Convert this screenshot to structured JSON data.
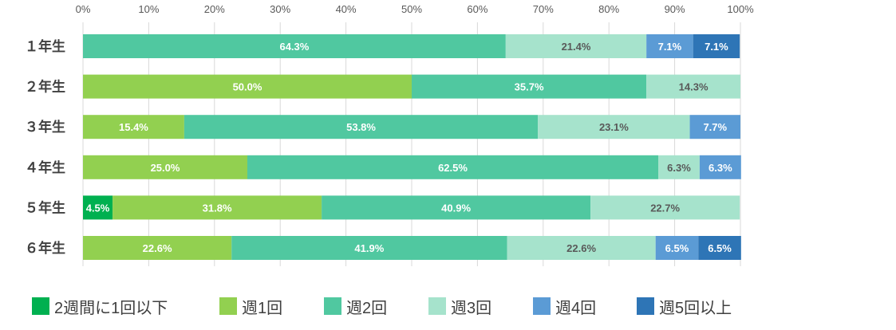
{
  "chart_data": {
    "type": "bar",
    "orientation": "horizontal",
    "stacked": true,
    "categories": [
      "１年生",
      "２年生",
      "３年生",
      "４年生",
      "５年生",
      "６年生"
    ],
    "x_ticks": [
      "0%",
      "10%",
      "20%",
      "30%",
      "40%",
      "50%",
      "60%",
      "70%",
      "80%",
      "90%",
      "100%"
    ],
    "xlim": [
      0,
      100
    ],
    "grid": true,
    "legend_position": "bottom",
    "series": [
      {
        "name": "2週間に1回以下",
        "color": "#00b050",
        "label_color": "#ffffff",
        "values": [
          0,
          0,
          0,
          0,
          4.5,
          0
        ],
        "labels": [
          "",
          "",
          "",
          "",
          "4.5%",
          ""
        ]
      },
      {
        "name": "週1回",
        "color": "#92d050",
        "label_color": "#ffffff",
        "values": [
          0,
          50.0,
          15.4,
          25.0,
          31.8,
          22.6
        ],
        "labels": [
          "",
          "50.0%",
          "15.4%",
          "25.0%",
          "31.8%",
          "22.6%"
        ]
      },
      {
        "name": "週2回",
        "color": "#50c8a0",
        "label_color": "#ffffff",
        "values": [
          64.3,
          35.7,
          53.8,
          62.5,
          40.9,
          41.9
        ],
        "labels": [
          "64.3%",
          "35.7%",
          "53.8%",
          "62.5%",
          "40.9%",
          "41.9%"
        ]
      },
      {
        "name": "週3回",
        "color": "#a6e3cc",
        "label_color": "#595959",
        "values": [
          21.4,
          14.3,
          23.1,
          6.3,
          22.7,
          22.6
        ],
        "labels": [
          "21.4%",
          "14.3%",
          "23.1%",
          "6.3%",
          "22.7%",
          "22.6%"
        ]
      },
      {
        "name": "週4回",
        "color": "#5b9bd5",
        "label_color": "#ffffff",
        "values": [
          7.1,
          0,
          7.7,
          6.3,
          0,
          6.5
        ],
        "labels": [
          "7.1%",
          "",
          "7.7%",
          "6.3%",
          "",
          "6.5%"
        ]
      },
      {
        "name": "週5回以上",
        "color": "#2e75b6",
        "label_color": "#ffffff",
        "values": [
          7.1,
          0,
          0,
          0,
          0,
          6.5
        ],
        "labels": [
          "7.1%",
          "",
          "",
          "",
          "",
          "6.5%"
        ]
      }
    ]
  }
}
